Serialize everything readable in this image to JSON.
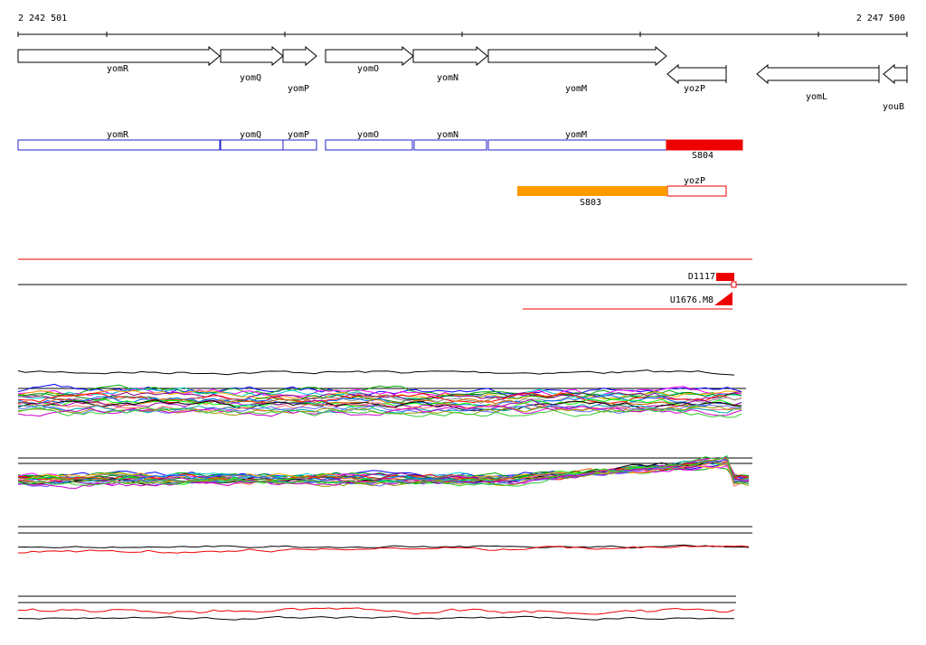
{
  "ruler": {
    "start": "2 242 501",
    "end": "2 247 500"
  },
  "gene_track": {
    "genes": [
      "yomR",
      "yomQ",
      "yomP",
      "yomO",
      "yomN",
      "yomM",
      "yozP",
      "yomL",
      "youB"
    ]
  },
  "feature_track": {
    "features": [
      "yomR",
      "yomQ",
      "yomP",
      "yomO",
      "yomN",
      "yomM",
      "S804"
    ]
  },
  "transcript_track": {
    "features": [
      "yozP",
      "S803"
    ]
  },
  "probes": {
    "labels": [
      "D1117",
      "U1676.M8"
    ]
  }
}
